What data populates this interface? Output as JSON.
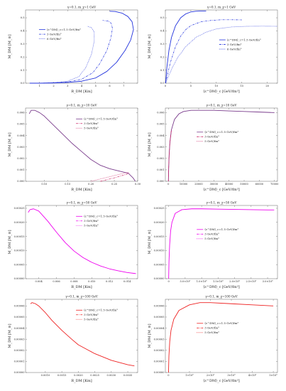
{
  "chart_data": [
    {
      "type": "line",
      "title": "γ=0.1, m_χ=1 GeV",
      "xlabel": "R_DM [Km]",
      "ylabel": "M_DM [M_⊙]",
      "xlim": [
        0,
        8
      ],
      "ylim": [
        0,
        0.56
      ],
      "xticks": [
        "1",
        "2",
        "3",
        "4",
        "5",
        "6",
        "7"
      ],
      "yticks": [
        "0.0",
        "0.1",
        "0.2",
        "0.3",
        "0.4",
        "0.5"
      ],
      "legend_position": "center-left",
      "series": [
        {
          "name": "⟨ε^DM⟩_c=1.5 GeV/fm³",
          "color": "#2233dd",
          "dash": "solid",
          "x": [
            0.3,
            1.0,
            2.0,
            3.0,
            4.0,
            5.0,
            5.8,
            6.5,
            7.1,
            7.5,
            7.7,
            7.6,
            7.3,
            6.9,
            6.4,
            6.0
          ],
          "y": [
            0.0,
            0.0,
            0.002,
            0.006,
            0.015,
            0.04,
            0.09,
            0.16,
            0.25,
            0.33,
            0.41,
            0.47,
            0.51,
            0.535,
            0.548,
            0.55
          ]
        },
        {
          "name": "3 GeV/fm³",
          "color": "#2233dd",
          "dash": "dashdot",
          "x": [
            0.3,
            1.0,
            2.0,
            3.0,
            4.0,
            4.8,
            5.3,
            5.8,
            6.1,
            6.2,
            6.1,
            5.9,
            5.5
          ],
          "y": [
            0.0,
            0.0,
            0.003,
            0.01,
            0.03,
            0.08,
            0.15,
            0.25,
            0.35,
            0.42,
            0.46,
            0.475,
            0.48
          ]
        },
        {
          "name": "6 GeV/fm³",
          "color": "#2233dd",
          "dash": "dotted",
          "x": [
            0.3,
            1.0,
            2.0,
            3.0,
            3.8,
            4.3,
            4.7,
            4.9,
            4.9,
            4.7,
            4.4
          ],
          "y": [
            0.0,
            0.0,
            0.004,
            0.015,
            0.05,
            0.12,
            0.22,
            0.32,
            0.39,
            0.425,
            0.435
          ]
        }
      ]
    },
    {
      "type": "line",
      "title": "γ=0.1, m_χ=1 GeV",
      "xlabel": "⟨ε^DM⟩_c [GeV/fm³]",
      "ylabel": "M_DM [M_⊙]",
      "xlim": [
        0,
        22
      ],
      "ylim": [
        0,
        0.56
      ],
      "xticks": [
        "0",
        "5",
        "10",
        "15",
        "20"
      ],
      "yticks": [
        "0.0",
        "0.1",
        "0.2",
        "0.3",
        "0.4",
        "0.5"
      ],
      "legend_position": "center-right",
      "series": [
        {
          "name": "⟨ε^DM⟩_c=1.5 GeV/fm³",
          "color": "#2233dd",
          "dash": "solid",
          "x": [
            0.05,
            0.3,
            0.7,
            1.2,
            2.0,
            3.0,
            4.0,
            5.0,
            6.0,
            7.0,
            8.0
          ],
          "y": [
            0.0,
            0.12,
            0.25,
            0.35,
            0.44,
            0.5,
            0.53,
            0.545,
            0.55,
            0.552,
            0.552
          ]
        },
        {
          "name": "3 GeV/fm³",
          "color": "#2233dd",
          "dash": "dashdot",
          "x": [
            0.05,
            0.5,
            1.0,
            2.0,
            3.0,
            4.0,
            5.0,
            7.0,
            9.0,
            11.0,
            13.0,
            15.0
          ],
          "y": [
            0.0,
            0.08,
            0.16,
            0.28,
            0.36,
            0.41,
            0.44,
            0.47,
            0.48,
            0.485,
            0.485,
            0.484
          ]
        },
        {
          "name": "6 GeV/fm³",
          "color": "#2233dd",
          "dash": "dotted",
          "x": [
            0.05,
            0.7,
            1.5,
            2.5,
            4.0,
            6.0,
            8.0,
            10.0,
            13.0,
            16.0,
            19.0,
            22.0
          ],
          "y": [
            0.0,
            0.06,
            0.13,
            0.2,
            0.28,
            0.35,
            0.39,
            0.415,
            0.43,
            0.435,
            0.436,
            0.435
          ]
        }
      ]
    },
    {
      "type": "line",
      "title": "γ=0.1, m_χ=10 GeV",
      "xlabel": "R_DM [Km]",
      "ylabel": "M_DM [M_⊙]",
      "xlim": [
        0.06,
        0.3
      ],
      "ylim": [
        0,
        0.0064
      ],
      "xticks": [
        "0.10",
        "0.15",
        "0.20",
        "0.25",
        "0.30"
      ],
      "yticks": [
        "0.000",
        "0.001",
        "0.002",
        "0.003",
        "0.004",
        "0.005",
        "0.006"
      ],
      "legend_position": "top-right",
      "series": [
        {
          "name": "⟨ε^DM⟩_c=1.5 GeV/fm³",
          "color": "#7a3c8c",
          "dash": "solid",
          "x": [
            0.068,
            0.072,
            0.08,
            0.09,
            0.1,
            0.12,
            0.14,
            0.16,
            0.18,
            0.2,
            0.22,
            0.24,
            0.26,
            0.28,
            0.29,
            0.295
          ],
          "y": [
            0.0059,
            0.0062,
            0.0062,
            0.006,
            0.0057,
            0.0049,
            0.0041,
            0.0033,
            0.0026,
            0.0019,
            0.0014,
            0.0011,
            0.0009,
            0.0007,
            0.0003,
            0.0
          ]
        },
        {
          "name": "3 GeV/fm³",
          "color": "#cc2266",
          "dash": "dashdot",
          "x": [
            0.22,
            0.25,
            0.275,
            0.283
          ],
          "y": [
            0.0,
            0.0003,
            0.0006,
            0.0007
          ]
        },
        {
          "name": "5 GeV/fm³",
          "color": "#cc2266",
          "dash": "dotted",
          "x": [
            0.2,
            0.24,
            0.27,
            0.28
          ],
          "y": [
            0.0,
            0.0004,
            0.0007,
            0.0008
          ]
        }
      ]
    },
    {
      "type": "line",
      "title": "γ=0.1, m_χ=10 GeV",
      "xlabel": "⟨ε^DM⟩_c [GeV/fm³]",
      "ylabel": "M_DM [M_⊙]",
      "xlim": [
        -2000,
        72000
      ],
      "ylim": [
        0,
        0.0064
      ],
      "xticks": [
        "0",
        "10000",
        "20000",
        "30000",
        "40000",
        "50000",
        "60000",
        "70000"
      ],
      "yticks": [
        "0.000",
        "0.001",
        "0.002",
        "0.003",
        "0.004",
        "0.005",
        "0.006"
      ],
      "legend_position": "center",
      "series": [
        {
          "name": "⟨ε^DM⟩_c=1.5 GeV/fm³",
          "color": "#7a3c8c",
          "dash": "solid",
          "x": [
            0,
            200,
            500,
            1000,
            2000,
            4000,
            7000,
            10000,
            15000,
            20000,
            30000,
            40000,
            50000,
            60000,
            70000
          ],
          "y": [
            0.0,
            0.0012,
            0.0023,
            0.0034,
            0.0045,
            0.0054,
            0.0059,
            0.0061,
            0.0062,
            0.0062,
            0.0062,
            0.00615,
            0.0061,
            0.00605,
            0.006
          ]
        },
        {
          "name": "3 GeV/fm³",
          "color": "#cc2266",
          "dash": "dashdot",
          "x": [
            0,
            200,
            500,
            1000,
            2000
          ],
          "y": [
            0.0,
            0.0012,
            0.0023,
            0.0034,
            0.0045
          ]
        },
        {
          "name": "5 GeV/fm³",
          "color": "#cc2266",
          "dash": "dotted",
          "x": [
            0,
            200,
            500,
            1000,
            2000
          ],
          "y": [
            0.0,
            0.0012,
            0.0023,
            0.0034,
            0.0045
          ]
        }
      ]
    },
    {
      "type": "line",
      "title": "γ=0.1, m_χ=50 GeV",
      "xlabel": "R_DM [Km]",
      "ylabel": "M_DM [M_⊙]",
      "xlim": [
        0.0025,
        0.0152
      ],
      "ylim": [
        0,
        0.00026
      ],
      "xticks": [
        "0.004",
        "0.006",
        "0.008",
        "0.010",
        "0.012",
        "0.014"
      ],
      "yticks": [
        "0.00000",
        "0.00005",
        "0.00010",
        "0.00015",
        "0.00020",
        "0.00025"
      ],
      "legend_position": "top-right",
      "series": [
        {
          "name": "⟨ε^DM⟩_c=1.5 GeV/fm³",
          "color": "#ee00ee",
          "dash": "solid",
          "x": [
            0.0028,
            0.003,
            0.0034,
            0.004,
            0.005,
            0.006,
            0.007,
            0.008,
            0.009,
            0.01,
            0.011,
            0.012,
            0.013,
            0.014,
            0.015
          ],
          "y": [
            0.000235,
            0.000245,
            0.000248,
            0.00024,
            0.000205,
            0.000165,
            0.000128,
            9.8e-05,
            7.5e-05,
            5.8e-05,
            4.5e-05,
            3.5e-05,
            2.8e-05,
            2.2e-05,
            1.8e-05
          ]
        },
        {
          "name": "3 GeV/fm³",
          "color": "#ee00ee",
          "dash": "dashdot",
          "x": [],
          "y": []
        },
        {
          "name": "5 GeV/fm³",
          "color": "#ee00ee",
          "dash": "dotted",
          "x": [],
          "y": []
        }
      ]
    },
    {
      "type": "line",
      "title": "γ=0.1, m_χ=50 GeV",
      "xlabel": "⟨ε^DM⟩_c [GeV/fm³]",
      "ylabel": "M_DM [M_⊙]",
      "xlim": [
        -100000,
        3300000
      ],
      "ylim": [
        0,
        0.00026
      ],
      "xticks": [
        "0",
        "5.0×10⁵",
        "1.0×10⁶",
        "1.5×10⁶",
        "2.0×10⁶",
        "2.5×10⁶",
        "3.0×10⁶"
      ],
      "yticks": [
        "0.00000",
        "0.00005",
        "0.00010",
        "0.00015",
        "0.00020",
        "0.00025"
      ],
      "legend_position": "center",
      "series": [
        {
          "name": "⟨ε^DM⟩_c=1.5 GeV/fm³",
          "color": "#ee00ee",
          "dash": "solid",
          "x": [
            0,
            10000,
            30000,
            60000,
            100000,
            200000,
            400000,
            700000,
            1000000,
            1500000,
            2000000,
            2500000,
            3000000,
            3200000
          ],
          "y": [
            0.0,
            6e-05,
            0.00012,
            0.00017,
            0.0002,
            0.000232,
            0.000245,
            0.000248,
            0.000248,
            0.000247,
            0.000246,
            0.000245,
            0.000244,
            0.000244
          ]
        },
        {
          "name": "3 GeV/fm³",
          "color": "#ee00ee",
          "dash": "dashdot",
          "x": [],
          "y": []
        },
        {
          "name": "5 GeV/fm³",
          "color": "#ee00ee",
          "dash": "dotted",
          "x": [],
          "y": []
        }
      ]
    },
    {
      "type": "line",
      "title": "γ=0.1, m_χ=100 GeV",
      "xlabel": "R_DM [Km]",
      "ylabel": "M_DM [M_⊙]",
      "xlim": [
        0.0004,
        0.0038
      ],
      "ylim": [
        0,
        6.6e-05
      ],
      "xticks": [
        "0.0010",
        "0.0015",
        "0.0020",
        "0.0025",
        "0.0030",
        "0.0035"
      ],
      "yticks": [
        "0.00000",
        "0.00001",
        "0.00002",
        "0.00003",
        "0.00004",
        "0.00005",
        "0.00006"
      ],
      "legend_position": "top-right",
      "series": [
        {
          "name": "⟨ε^DM⟩_c=1.5 GeV/fm³",
          "color": "#ee2222",
          "dash": "solid",
          "x": [
            0.00055,
            0.0006,
            0.0007,
            0.0008,
            0.001,
            0.0012,
            0.0015,
            0.0018,
            0.002,
            0.0025,
            0.003,
            0.0035,
            0.0037
          ],
          "y": [
            6.2e-05,
            6.3e-05,
            6.2e-05,
            6e-05,
            5.4e-05,
            4.7e-05,
            3.8e-05,
            3e-05,
            2.5e-05,
            1.7e-05,
            1.1e-05,
            7e-06,
            6e-06
          ]
        },
        {
          "name": "3 GeV/fm³",
          "color": "#ee2222",
          "dash": "dashdot",
          "x": [],
          "y": []
        },
        {
          "name": "5 GeV/fm³",
          "color": "#ee2222",
          "dash": "dotted",
          "x": [],
          "y": []
        }
      ]
    },
    {
      "type": "line",
      "title": "γ=0.1, m_χ=100 GeV",
      "xlabel": "⟨ε^DM⟩_c [GeV/fm³]",
      "ylabel": "M_DM [M_⊙]",
      "xlim": [
        -150000,
        5200000
      ],
      "ylim": [
        0,
        6.6e-05
      ],
      "xticks": [
        "0",
        "1×10⁶",
        "2×10⁶",
        "3×10⁶",
        "4×10⁶",
        "5×10⁶"
      ],
      "yticks": [
        "0.00000",
        "0.00001",
        "0.00002",
        "0.00003",
        "0.00004",
        "0.00005",
        "0.00006"
      ],
      "legend_position": "center",
      "series": [
        {
          "name": "⟨ε^DM⟩_c=1.5 GeV/fm³",
          "color": "#ee2222",
          "dash": "solid",
          "x": [
            0,
            20000,
            60000,
            120000,
            250000,
            500000,
            1000000,
            1500000,
            2000000,
            3000000,
            4000000,
            5000000
          ],
          "y": [
            0.0,
            1.5e-05,
            2.8e-05,
            3.8e-05,
            4.8e-05,
            5.6e-05,
            6.1e-05,
            6.3e-05,
            6.3e-05,
            6.2e-05,
            6.1e-05,
            6e-05
          ]
        },
        {
          "name": "3 GeV/fm³",
          "color": "#ee2222",
          "dash": "dashdot",
          "x": [],
          "y": []
        },
        {
          "name": "5 GeV/fm³",
          "color": "#ee2222",
          "dash": "dotted",
          "x": [],
          "y": []
        }
      ]
    }
  ]
}
